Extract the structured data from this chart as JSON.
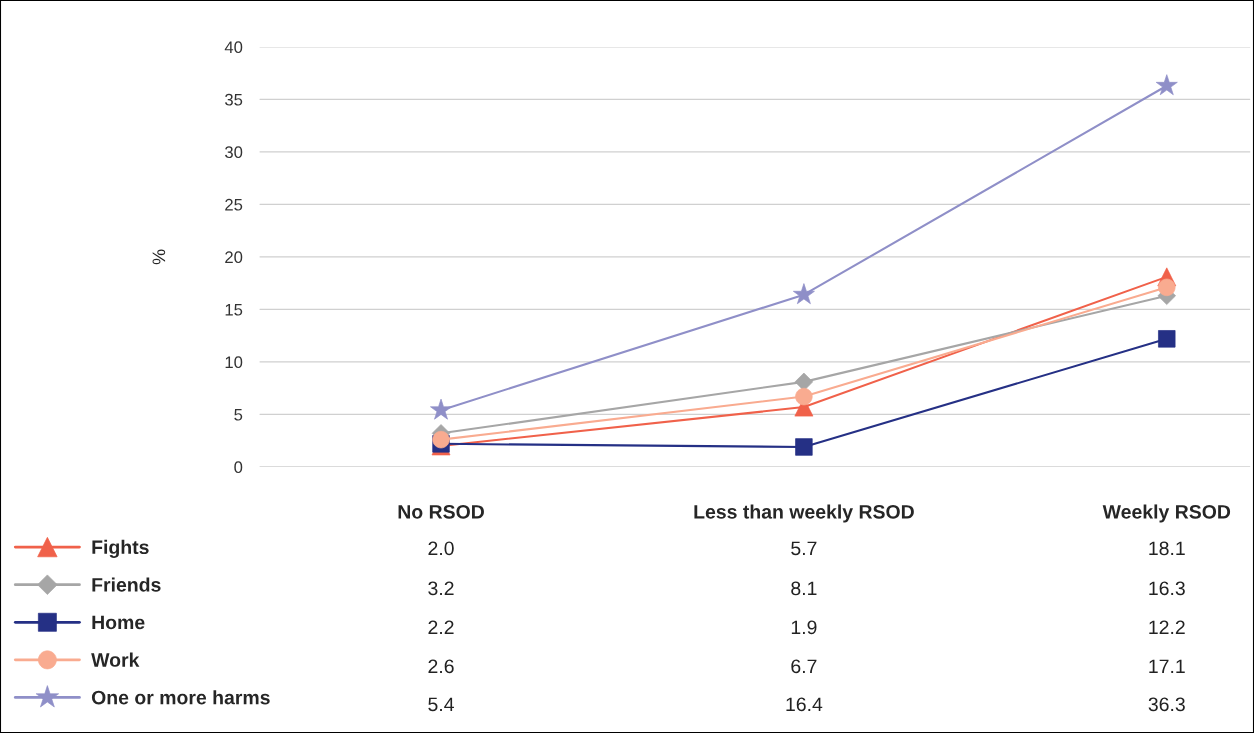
{
  "chart_data": {
    "type": "line",
    "ylabel": "%",
    "categories": [
      "No RSOD",
      "Less than weekly RSOD",
      "Weekly RSOD"
    ],
    "series": [
      {
        "name": "Fights",
        "color": "#f0614a",
        "marker": "triangle",
        "values": [
          2.0,
          5.7,
          18.1
        ],
        "value_labels": [
          "2.0",
          "5.7",
          "18.1"
        ]
      },
      {
        "name": "Friends",
        "color": "#a6a6a6",
        "marker": "diamond",
        "values": [
          3.2,
          8.1,
          16.3
        ],
        "value_labels": [
          "3.2",
          "8.1",
          "16.3"
        ]
      },
      {
        "name": "Home",
        "color": "#253085",
        "marker": "square",
        "values": [
          2.2,
          1.9,
          12.2
        ],
        "value_labels": [
          "2.2",
          "1.9",
          "12.2"
        ]
      },
      {
        "name": "Work",
        "color": "#f9ab90",
        "marker": "circle",
        "values": [
          2.6,
          6.7,
          17.1
        ],
        "value_labels": [
          "2.6",
          "6.7",
          "17.1"
        ]
      },
      {
        "name": "One or more harms",
        "color": "#8f8fc8",
        "marker": "star",
        "values": [
          5.4,
          16.4,
          36.3
        ],
        "value_labels": [
          "5.4",
          "16.4",
          "36.3"
        ]
      }
    ],
    "ylim": [
      0,
      40
    ],
    "yticks": [
      0,
      5,
      10,
      15,
      20,
      25,
      30,
      35,
      40
    ],
    "grid": "y",
    "legend": "bottom left"
  }
}
